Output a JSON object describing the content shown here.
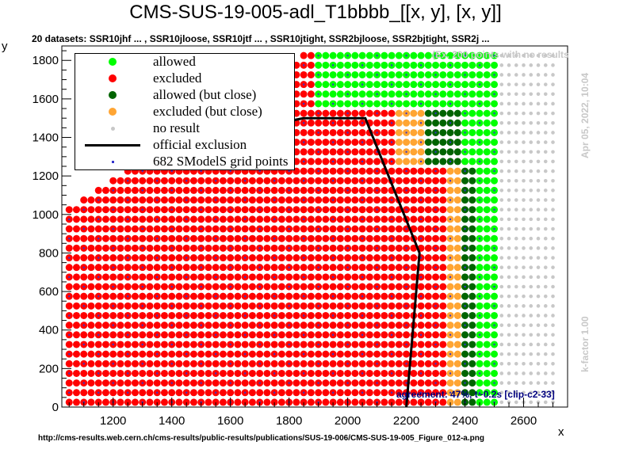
{
  "title": "CMS-SUS-19-005-adl_T1bbbb_[[x, y], [x, y]]",
  "subtitle": "20 datasets: SSR10jhf ... , SSR10jloose, SSR10jtf ... , SSR10jtight, SSR2bjloose, SSR2bjtight, SSR2j ...",
  "footer": "http://cms-results.web.cern.ch/cms-results/public-results/publications/SUS-19-006/CMS-SUS-19-005_Figure_012-a.png",
  "note_no_results": "(Ex. 200 points with no results",
  "date": "Apr 05, 2022, 10:04",
  "kfactor": "k-factor 1.00",
  "agreement": "agreement: 47%, t~0.2s [clip-c2-33]",
  "colors": {
    "allowed": "#00ff00",
    "excluded": "#ff0000",
    "allowed_close": "#006400",
    "excluded_close": "#ffa533",
    "no_result": "#c8c8c8",
    "grid": "#3333cc",
    "line": "#000000"
  },
  "legend": [
    {
      "key": "allowed",
      "label": "allowed"
    },
    {
      "key": "excluded",
      "label": "excluded"
    },
    {
      "key": "allowed_close",
      "label": "allowed (but close)"
    },
    {
      "key": "excluded_close",
      "label": "excluded (but close)"
    },
    {
      "key": "no_result",
      "label": "no result"
    },
    {
      "key": "line",
      "label": "official exclusion"
    },
    {
      "key": "grid",
      "label": "682 SModelS grid points"
    }
  ],
  "chart_data": {
    "type": "scatter",
    "title": "CMS-SUS-19-005-adl_T1bbbb_[[x, y], [x, y]]",
    "xlabel": "x",
    "ylabel": "y",
    "xlim": [
      1025,
      2750
    ],
    "ylim": [
      0,
      1875
    ],
    "xticks": [
      1200,
      1400,
      1600,
      1800,
      2000,
      2200,
      2400,
      2600
    ],
    "yticks": [
      0,
      200,
      400,
      600,
      800,
      1000,
      1200,
      1400,
      1600,
      1800
    ],
    "grid_step_x": 25,
    "grid_step_y": 50,
    "x_start": 1050,
    "x_end": 2700,
    "y_start": 0,
    "diagonal_offset": 25,
    "columns": [
      {
        "x_min": 1050,
        "x_max": 2150,
        "status": "excluded"
      },
      {
        "x_min": 2175,
        "x_max": 2250,
        "status": "excluded",
        "upper": "excluded_close"
      },
      {
        "x_min": 2275,
        "x_max": 2325,
        "status": "excluded",
        "upper": "allowed_close"
      },
      {
        "x_min": 2350,
        "x_max": 2375,
        "status": "excluded_close",
        "upper": "allowed_close"
      },
      {
        "x_min": 2400,
        "x_max": 2425,
        "status": "allowed_close",
        "upper": "allowed"
      },
      {
        "x_min": 2450,
        "x_max": 2500,
        "status": "allowed"
      },
      {
        "x_min": 2525,
        "x_max": 2700,
        "status": "no_result"
      }
    ],
    "top_band": {
      "x_min": 1900,
      "x_max": 2500,
      "y_min": 1550,
      "status": "allowed"
    },
    "official_exclusion": {
      "x": [
        1300,
        1350,
        1450,
        1550,
        1650,
        1750,
        1850,
        2060,
        2245,
        2200
      ],
      "y": [
        1250,
        1280,
        1330,
        1380,
        1420,
        1470,
        1500,
        1500,
        800,
        0
      ]
    }
  }
}
